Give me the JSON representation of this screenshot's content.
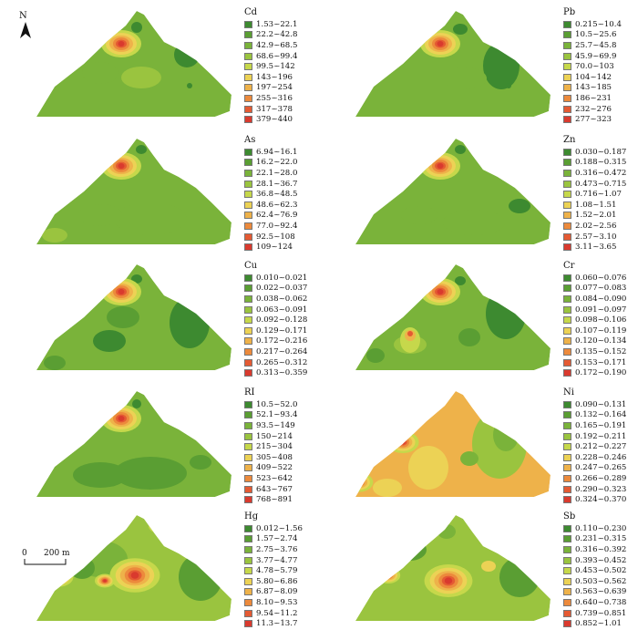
{
  "north_arrow": {
    "label": "N"
  },
  "scale_bar": {
    "zero": "0",
    "distance": "200 m"
  },
  "panels": [
    {
      "id": "Cd",
      "title": "Cd",
      "classes": [
        "1.53~22.1",
        "22.2~42.8",
        "42.9~68.5",
        "68.6~99.4",
        "99.5~142",
        "143~196",
        "197~254",
        "255~316",
        "317~378",
        "379~440"
      ]
    },
    {
      "id": "Pb",
      "title": "Pb",
      "classes": [
        "0.215~10.4",
        "10.5~25.6",
        "25.7~45.8",
        "45.9~69.9",
        "70.0~103",
        "104~142",
        "143~185",
        "186~231",
        "232~276",
        "277~323"
      ]
    },
    {
      "id": "As",
      "title": "As",
      "classes": [
        "6.94~16.1",
        "16.2~22.0",
        "22.1~28.0",
        "28.1~36.7",
        "36.8~48.5",
        "48.6~62.3",
        "62.4~76.9",
        "77.0~92.4",
        "92.5~108",
        "109~124"
      ]
    },
    {
      "id": "Zn",
      "title": "Zn",
      "classes": [
        "0.030~0.187",
        "0.188~0.315",
        "0.316~0.472",
        "0.473~0.715",
        "0.716~1.07",
        "1.08~1.51",
        "1.52~2.01",
        "2.02~2.56",
        "2.57~3.10",
        "3.11~3.65"
      ]
    },
    {
      "id": "Cu",
      "title": "Cu",
      "classes": [
        "0.010~0.021",
        "0.022~0.037",
        "0.038~0.062",
        "0.063~0.091",
        "0.092~0.128",
        "0.129~0.171",
        "0.172~0.216",
        "0.217~0.264",
        "0.265~0.312",
        "0.313~0.359"
      ]
    },
    {
      "id": "Cr",
      "title": "Cr",
      "classes": [
        "0.060~0.076",
        "0.077~0.083",
        "0.084~0.090",
        "0.091~0.097",
        "0.098~0.106",
        "0.107~0.119",
        "0.120~0.134",
        "0.135~0.152",
        "0.153~0.171",
        "0.172~0.190"
      ]
    },
    {
      "id": "RI",
      "title": "RI",
      "classes": [
        "10.5~52.0",
        "52.1~93.4",
        "93.5~149",
        "150~214",
        "215~304",
        "305~408",
        "409~522",
        "523~642",
        "643~767",
        "768~891"
      ]
    },
    {
      "id": "Ni",
      "title": "Ni",
      "classes": [
        "0.090~0.131",
        "0.132~0.164",
        "0.165~0.191",
        "0.192~0.211",
        "0.212~0.227",
        "0.228~0.246",
        "0.247~0.265",
        "0.266~0.289",
        "0.290~0.323",
        "0.324~0.370"
      ]
    },
    {
      "id": "Hg",
      "title": "Hg",
      "classes": [
        "0.012~1.56",
        "1.57~2.74",
        "2.75~3.76",
        "3.77~4.77",
        "4.78~5.79",
        "5.80~6.86",
        "6.87~8.09",
        "8.10~9.53",
        "9.54~11.2",
        "11.3~13.7"
      ]
    },
    {
      "id": "Sb",
      "title": "Sb",
      "classes": [
        "0.110~0.230",
        "0.231~0.315",
        "0.316~0.392",
        "0.393~0.452",
        "0.453~0.502",
        "0.503~0.562",
        "0.563~0.639",
        "0.640~0.738",
        "0.739~0.851",
        "0.852~1.01"
      ]
    }
  ],
  "legend_colors": [
    "#3d8a30",
    "#5a9e33",
    "#7ab33a",
    "#9ac43f",
    "#c6d84b",
    "#ecd255",
    "#eeb24a",
    "#ec8a3c",
    "#e45a33",
    "#d93a2e"
  ]
}
